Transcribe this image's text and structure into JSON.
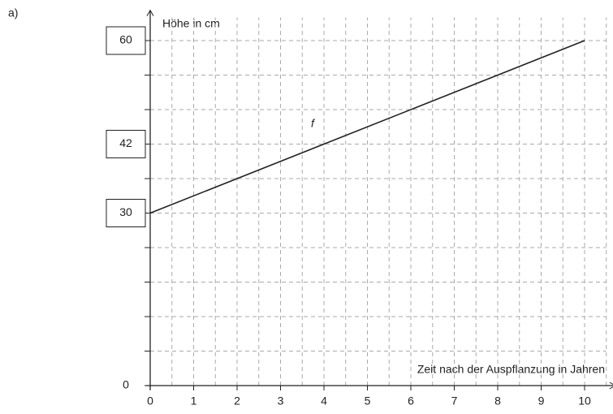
{
  "chart_data": {
    "type": "line",
    "label": "a)",
    "ylabel": "Höhe in cm",
    "xlabel": "Zeit nach der Auspflanzung in Jahren",
    "x": [
      0,
      10
    ],
    "series": [
      {
        "name": "f",
        "color": "#222222",
        "values": [
          30,
          60
        ]
      }
    ],
    "xlim": [
      0,
      10.5
    ],
    "ylim": [
      0,
      64
    ],
    "xticks": [
      0,
      1,
      2,
      3,
      4,
      5,
      6,
      7,
      8,
      9,
      10
    ],
    "yticks": [
      0,
      30,
      42,
      60
    ],
    "boxed_yticks": [
      30,
      42,
      60
    ],
    "xgrid": [
      0.5,
      1,
      1.5,
      2,
      2.5,
      3,
      3.5,
      4,
      4.5,
      5,
      5.5,
      6,
      6.5,
      7,
      7.5,
      8,
      8.5,
      9,
      9.5,
      10,
      10.5
    ],
    "ygrid": [
      6,
      12,
      18,
      24,
      30,
      36,
      42,
      48,
      54,
      60
    ],
    "grid": true
  }
}
